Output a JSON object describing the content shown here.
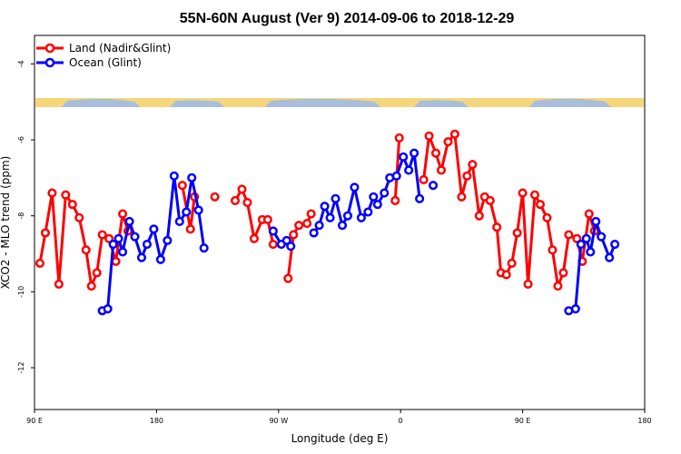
{
  "chart_data": {
    "type": "line",
    "title": "55N-60N August (Ver 9)   2014-09-06 to 2018-12-29",
    "xlabel": "Longitude (deg E)",
    "ylabel": "XCO2 - MLO trend (ppm)",
    "x_tick_labels": [
      "90 E",
      "180",
      "90 W",
      "0",
      "90 E",
      "180"
    ],
    "x_ticks": [
      90,
      180,
      270,
      360,
      450,
      540
    ],
    "xlim": [
      90,
      540
    ],
    "y_ticks": [
      -4,
      -6,
      -8,
      -10,
      -12
    ],
    "y_tick_labels": [
      "-4",
      "-6",
      "-8",
      "-10",
      "-12"
    ],
    "ylim": [
      -13.1,
      -3.25
    ],
    "grid": false,
    "legend_position": "top-left",
    "colors": {
      "land": "#ff0000",
      "ocean": "#0000ff",
      "map_land": "#f5d77a",
      "map_ocean": "#a9bedb"
    },
    "series": [
      {
        "name": "Land (Nadir&Glint)",
        "color": "#ff0000",
        "segments": [
          [
            [
              94,
              -9.25
            ],
            [
              98,
              -8.45
            ],
            [
              103,
              -7.4
            ],
            [
              108,
              -9.8
            ],
            [
              113,
              -7.45
            ],
            [
              118,
              -7.7
            ],
            [
              123,
              -8.05
            ],
            [
              128,
              -8.9
            ],
            [
              132,
              -9.85
            ],
            [
              136,
              -9.5
            ],
            [
              140,
              -8.5
            ],
            [
              145,
              -8.6
            ],
            [
              150,
              -9.2
            ],
            [
              155,
              -7.95
            ],
            [
              159,
              -8.4
            ]
          ],
          [
            [
              199,
              -7.2
            ],
            [
              205,
              -8.35
            ],
            [
              208,
              -7.5
            ]
          ],
          [
            [
              223,
              -7.5
            ]
          ],
          [
            [
              238,
              -7.6
            ],
            [
              243,
              -7.3
            ],
            [
              247,
              -7.65
            ],
            [
              252,
              -8.6
            ],
            [
              258,
              -8.1
            ],
            [
              262,
              -8.1
            ],
            [
              266,
              -8.75
            ]
          ],
          [
            [
              277,
              -9.65
            ],
            [
              281,
              -8.5
            ],
            [
              285,
              -8.25
            ],
            [
              291,
              -8.2
            ],
            [
              294,
              -7.95
            ]
          ],
          [
            [
              356,
              -7.6
            ],
            [
              359,
              -5.95
            ]
          ],
          [
            [
              377,
              -7.05
            ],
            [
              381,
              -5.9
            ],
            [
              386,
              -6.35
            ],
            [
              390,
              -6.8
            ],
            [
              395,
              -6.05
            ],
            [
              400,
              -5.85
            ],
            [
              405,
              -7.5
            ],
            [
              409,
              -6.95
            ],
            [
              413,
              -6.65
            ],
            [
              418,
              -8.0
            ],
            [
              422,
              -7.5
            ],
            [
              426,
              -7.6
            ],
            [
              431,
              -8.3
            ],
            [
              434,
              -9.5
            ],
            [
              438,
              -9.55
            ],
            [
              442,
              -9.25
            ],
            [
              446,
              -8.45
            ],
            [
              450,
              -7.4
            ],
            [
              454,
              -9.8
            ],
            [
              459,
              -7.45
            ],
            [
              463,
              -7.7
            ],
            [
              468,
              -8.05
            ],
            [
              472,
              -8.9
            ],
            [
              476,
              -9.85
            ],
            [
              480,
              -9.5
            ],
            [
              484,
              -8.5
            ],
            [
              490,
              -8.6
            ],
            [
              494,
              -9.2
            ],
            [
              499,
              -7.95
            ],
            [
              503,
              -8.4
            ]
          ]
        ]
      },
      {
        "name": "Ocean (Glint)",
        "color": "#0000ff",
        "segments": [
          [
            [
              140,
              -10.5
            ],
            [
              144,
              -10.45
            ],
            [
              148,
              -8.75
            ],
            [
              152,
              -8.6
            ],
            [
              155,
              -8.95
            ],
            [
              160,
              -8.15
            ],
            [
              164,
              -8.55
            ],
            [
              169,
              -9.1
            ],
            [
              173,
              -8.75
            ],
            [
              178,
              -8.35
            ],
            [
              183,
              -9.15
            ],
            [
              188,
              -8.65
            ],
            [
              193,
              -6.95
            ],
            [
              197,
              -8.15
            ],
            [
              202,
              -7.9
            ],
            [
              206,
              -7.0
            ],
            [
              211,
              -7.85
            ],
            [
              215,
              -8.85
            ]
          ],
          [
            [
              266,
              -8.4
            ],
            [
              272,
              -8.75
            ],
            [
              276,
              -8.65
            ],
            [
              279,
              -8.8
            ]
          ],
          [
            [
              296,
              -8.45
            ],
            [
              300,
              -8.25
            ],
            [
              304,
              -7.75
            ],
            [
              308,
              -8.05
            ],
            [
              312,
              -7.55
            ],
            [
              317,
              -8.25
            ],
            [
              321,
              -8.0
            ],
            [
              326,
              -7.25
            ],
            [
              331,
              -8.05
            ],
            [
              336,
              -7.9
            ],
            [
              340,
              -7.5
            ],
            [
              343,
              -7.7
            ],
            [
              348,
              -7.4
            ],
            [
              352,
              -7.0
            ],
            [
              357,
              -6.95
            ],
            [
              362,
              -6.45
            ],
            [
              366,
              -6.8
            ],
            [
              370,
              -6.35
            ],
            [
              374,
              -7.55
            ]
          ],
          [
            [
              384,
              -7.2
            ]
          ],
          [
            [
              484,
              -10.5
            ],
            [
              489,
              -10.45
            ],
            [
              493,
              -8.75
            ],
            [
              497,
              -8.6
            ],
            [
              500,
              -8.95
            ],
            [
              504,
              -8.15
            ],
            [
              508,
              -8.55
            ],
            [
              514,
              -9.1
            ],
            [
              518,
              -8.75
            ]
          ]
        ]
      }
    ]
  }
}
